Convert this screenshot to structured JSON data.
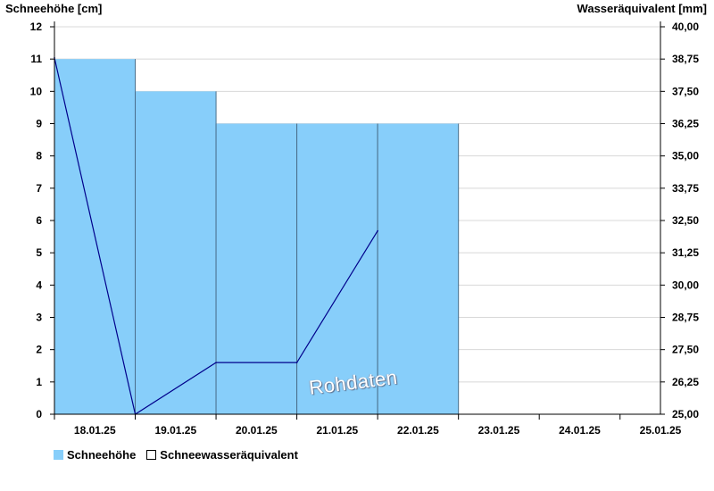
{
  "chart_data": {
    "type": "bar",
    "categories": [
      "18.01.25",
      "19.01.25",
      "20.01.25",
      "21.01.25",
      "22.01.25",
      "23.01.25",
      "24.01.25",
      "25.01.25"
    ],
    "xlabel": "",
    "ylabel": "Schneehöhe [cm]",
    "y2label": "Wasseräquivalent [mm]",
    "ylim": [
      0,
      12
    ],
    "yticks": [
      0,
      1,
      2,
      3,
      4,
      5,
      6,
      7,
      8,
      9,
      10,
      11,
      12
    ],
    "y2lim": [
      25.0,
      40.0
    ],
    "y2ticks": [
      "25,00",
      "26,25",
      "27,50",
      "28,75",
      "30,00",
      "31,25",
      "32,50",
      "33,75",
      "35,00",
      "36,25",
      "37,50",
      "38,75",
      "40,00"
    ],
    "grid": true,
    "legend_position": "bottom-left",
    "series": [
      {
        "name": "Schneehöhe",
        "type": "bar",
        "axis": "left",
        "color": "#87cefa",
        "values": [
          11,
          10,
          9,
          9,
          9,
          null,
          null,
          null
        ]
      },
      {
        "name": "Schneewasseräquivalent",
        "type": "line",
        "axis": "right",
        "color": "#00008b",
        "points": [
          {
            "x": "18.01.25",
            "y": 38.8
          },
          {
            "x": "19.01.25",
            "y": 25.0
          },
          {
            "x": "20.01.25",
            "y": 27.0
          },
          {
            "x": "21.01.25",
            "y": 27.0
          },
          {
            "x": "22.01.25",
            "y": 32.1
          }
        ]
      }
    ],
    "watermark": "Rohdaten"
  },
  "colors": {
    "grid": "#d8d8d8",
    "axis": "#000000",
    "bar_edge": "#4a6f8c"
  }
}
